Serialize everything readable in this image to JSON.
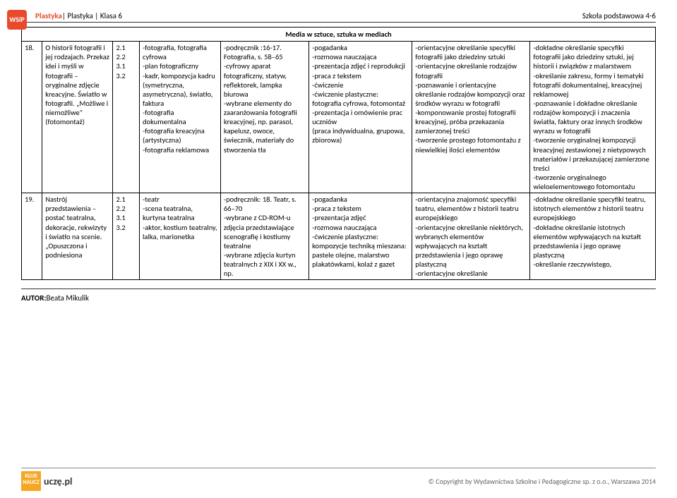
{
  "header": {
    "logo": "WSiP",
    "subject": "Plastyka",
    "breadcrumb": "| Plastyka | Klasa 6",
    "right": "Szkoła podstawowa 4-6"
  },
  "tableHeader": "Media w sztuce, sztuka w mediach",
  "rows": [
    {
      "num": "18.",
      "topic": "O historii fotografii i jej rodzajach. Przekaz idei i myśli w fotografii – oryginalne zdjęcie kreacyjne. Światło w fotografii. „Możliwe i niemożliwe\" (fotomontaż)",
      "refs": "2.1\n2.2\n3.1\n3.2",
      "concepts": "-fotografia, fotografia cyfrowa\n-plan fotograficzny\n-kadr, kompozycja kadru (symetryczna, asymetryczna), światło, faktura\n-fotografia dokumentalna\n-fotografia kreacyjna (artystyczna)\n-fotografia reklamowa",
      "materials": "-podręcznik :16-17. Fotografia, s. 58–65\n-cyfrowy aparat fotograficzny, statyw, reflektorek, lampka biurowa\n-wybrane elementy do zaaranżowania fotografii kreacyjnej, np. parasol, kapelusz, owoce, świecznik, materiały do stworzenia tła",
      "methods": "-pogadanka\n-rozmowa nauczająca\n-prezentacja zdjęć i reprodukcji\n-praca z tekstem\n-ćwiczenie\n-ćwiczenie plastyczne: fotografia cyfrowa, fotomontaż\n-prezentacja i omówienie prac uczniów\n(praca indywidualna, grupowa, zbiorowa)",
      "basic": "-orientacyjne określanie specyfiki fotografii jako dziedziny sztuki\n-orientacyjne określanie rodzajów fotografii\n-poznawanie i orientacyjne określanie rodzajów kompozycji oraz środków wyrazu w fotografii\n-komponowanie prostej fotografii kreacyjnej, próba przekazania zamierzonej treści\n-tworzenie prostego fotomontażu z niewielkiej ilości elementów",
      "extended": "-dokładne określanie specyfiki fotografii jako dziedziny sztuki, jej historii i związków z malarstwem\n-określanie zakresu, formy i tematyki fotografii dokumentalnej, kreacyjnej reklamowej\n-poznawanie i dokładne określanie rodzajów kompozycji i znaczenia światła, faktury oraz innych środków wyrazu w fotografii\n-tworzenie oryginalnej kompozycji kreacyjnej zestawionej z nietypowych materiałów i przekazującej zamierzone treści\n-tworzenie oryginalnego wieloelementowego fotomontażu"
    },
    {
      "num": "19.",
      "topic": "Nastrój przedstawienia –postać teatralna, dekoracje, rekwizyty i światło na scenie. „Opuszczona i podniesiona",
      "refs": "2.1\n2.2\n3.1\n3.2",
      "concepts": "-teatr\n-scena teatralna, kurtyna teatralna\n-aktor, kostium teatralny, lalka, marionetka",
      "materials": "-podręcznik: 18. Teatr, s. 66–70\n-wybrane z CD-ROM-u zdjęcia przedstawiające scenografię i kostiumy teatralne\n-wybrane zdjęcia kurtyn teatralnych z XIX i XX w., np.",
      "methods": "-pogadanka\n-praca z tekstem\n-prezentacja zdjęć\n-rozmowa nauczająca\n-ćwiczenie plastyczne: kompozycje techniką mieszana: pastele olejne, malarstwo plakatówkami, kolaż z gazet",
      "basic": "-orientacyjna znajomość specyfiki teatru, elementów z historii teatru europejskiego\n-orientacyjne określanie niektórych, wybranych elementów wpływających na kształt przedstawienia i jego oprawę plastyczną\n-orientacyjne określanie",
      "extended": "-dokładne określanie specyfiki teatru, istotnych elementów z historii teatru europejskiego\n-dokładne określanie istotnych elementów wpływających na kształt przedstawienia i jego oprawę plastyczną\n-określanie rzeczywistego,"
    }
  ],
  "author": {
    "label": "AUTOR:",
    "name": "Beata Mikulik"
  },
  "footer": {
    "logo1": "KLUB\nNAUCZ",
    "logo2": "uczę.pl",
    "copyright": "© Copyright by Wydawnictwa Szkolne i Pedagogiczne sp. z o.o., Warszawa 2014"
  },
  "colors": {
    "accent": "#e84b2c",
    "border": "#000000",
    "footerLogo": "#f5a623",
    "muted": "#666666"
  }
}
